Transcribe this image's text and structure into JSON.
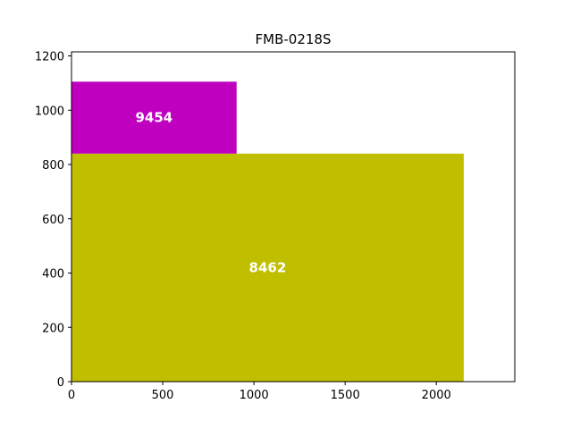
{
  "chart_data": {
    "type": "bar",
    "title": "FMB-0218S",
    "xlabel": "",
    "ylabel": "",
    "xlim": [
      0,
      2430
    ],
    "ylim": [
      0,
      1215
    ],
    "x_ticks": [
      0,
      500,
      1000,
      1500,
      2000
    ],
    "y_ticks": [
      0,
      200,
      400,
      600,
      800,
      1000,
      1200
    ],
    "grid": false,
    "legend": false,
    "rects": [
      {
        "label": "8462",
        "x0": 0,
        "x1": 2150,
        "y0": 0,
        "y1": 840,
        "color": "#bfbf00"
      },
      {
        "label": "9454",
        "x0": 0,
        "x1": 905,
        "y0": 840,
        "y1": 1105,
        "color": "#bf00bf"
      }
    ]
  }
}
